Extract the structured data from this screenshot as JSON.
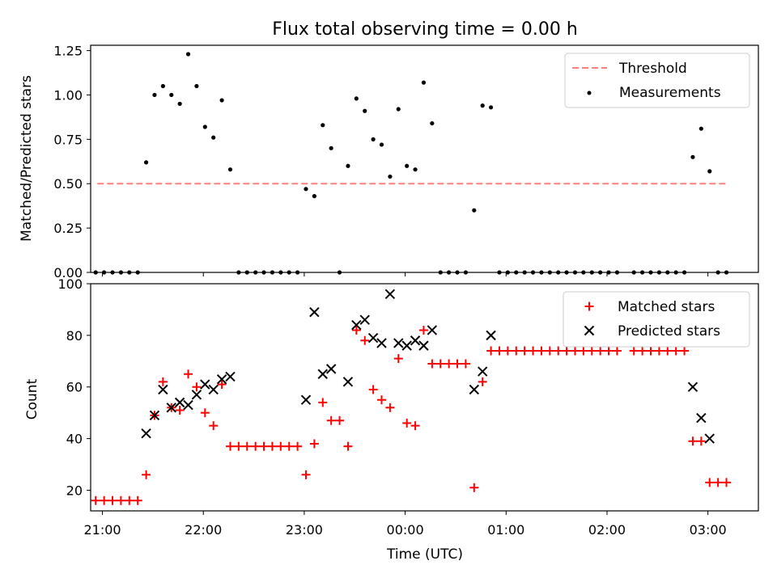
{
  "chart_data": [
    {
      "type": "scatter",
      "title": "Flux total observing time = 0.00 h",
      "ylabel": "Matched/Predicted stars",
      "xlabel": "",
      "xlim": [
        "20:53",
        "03:30"
      ],
      "ylim": [
        0,
        1.28
      ],
      "y_ticks": [
        0.0,
        0.25,
        0.5,
        0.75,
        1.0,
        1.25
      ],
      "y_tick_labels": [
        "0.00",
        "0.25",
        "0.50",
        "0.75",
        "1.00",
        "1.25"
      ],
      "grid": false,
      "legend": {
        "placement": "upper right",
        "entries": [
          "Threshold",
          "Measurements"
        ]
      },
      "series": [
        {
          "name": "Threshold",
          "style": "dashed-line",
          "color": "#ff7f7f",
          "points": [
            [
              "20:57",
              0.5
            ],
            [
              "03:12",
              0.5
            ]
          ]
        },
        {
          "name": "Measurements",
          "style": "dot",
          "color": "#000000",
          "points": [
            [
              "20:56",
              0.0
            ],
            [
              "21:01",
              0.0
            ],
            [
              "21:06",
              0.0
            ],
            [
              "21:11",
              0.0
            ],
            [
              "21:16",
              0.0
            ],
            [
              "21:21",
              0.0
            ],
            [
              "21:26",
              0.62
            ],
            [
              "21:31",
              1.0
            ],
            [
              "21:36",
              1.05
            ],
            [
              "21:41",
              1.0
            ],
            [
              "21:46",
              0.95
            ],
            [
              "21:51",
              1.23
            ],
            [
              "21:56",
              1.05
            ],
            [
              "22:01",
              0.82
            ],
            [
              "22:06",
              0.76
            ],
            [
              "22:11",
              0.97
            ],
            [
              "22:16",
              0.58
            ],
            [
              "22:21",
              0.0
            ],
            [
              "22:26",
              0.0
            ],
            [
              "22:31",
              0.0
            ],
            [
              "22:36",
              0.0
            ],
            [
              "22:41",
              0.0
            ],
            [
              "22:46",
              0.0
            ],
            [
              "22:51",
              0.0
            ],
            [
              "22:56",
              0.0
            ],
            [
              "23:01",
              0.47
            ],
            [
              "23:06",
              0.43
            ],
            [
              "23:11",
              0.83
            ],
            [
              "23:16",
              0.7
            ],
            [
              "23:21",
              0.0
            ],
            [
              "23:26",
              0.6
            ],
            [
              "23:31",
              0.98
            ],
            [
              "23:36",
              0.91
            ],
            [
              "23:41",
              0.75
            ],
            [
              "23:46",
              0.72
            ],
            [
              "23:51",
              0.54
            ],
            [
              "23:56",
              0.92
            ],
            [
              "00:01",
              0.6
            ],
            [
              "00:06",
              0.58
            ],
            [
              "00:11",
              1.07
            ],
            [
              "00:16",
              0.84
            ],
            [
              "00:21",
              0.0
            ],
            [
              "00:26",
              0.0
            ],
            [
              "00:31",
              0.0
            ],
            [
              "00:36",
              0.0
            ],
            [
              "00:41",
              0.35
            ],
            [
              "00:46",
              0.94
            ],
            [
              "00:51",
              0.93
            ],
            [
              "00:56",
              0.0
            ],
            [
              "01:01",
              0.0
            ],
            [
              "01:06",
              0.0
            ],
            [
              "01:11",
              0.0
            ],
            [
              "01:16",
              0.0
            ],
            [
              "01:21",
              0.0
            ],
            [
              "01:26",
              0.0
            ],
            [
              "01:31",
              0.0
            ],
            [
              "01:36",
              0.0
            ],
            [
              "01:41",
              0.0
            ],
            [
              "01:46",
              0.0
            ],
            [
              "01:51",
              0.0
            ],
            [
              "01:56",
              0.0
            ],
            [
              "02:01",
              0.0
            ],
            [
              "02:06",
              0.0
            ],
            [
              "02:16",
              0.0
            ],
            [
              "02:21",
              0.0
            ],
            [
              "02:26",
              0.0
            ],
            [
              "02:31",
              0.0
            ],
            [
              "02:36",
              0.0
            ],
            [
              "02:41",
              0.0
            ],
            [
              "02:46",
              0.0
            ],
            [
              "02:51",
              0.65
            ],
            [
              "02:56",
              0.81
            ],
            [
              "03:01",
              0.57
            ],
            [
              "03:06",
              0.0
            ],
            [
              "03:11",
              0.0
            ]
          ]
        }
      ]
    },
    {
      "type": "scatter",
      "title": "",
      "xlabel": "Time (UTC)",
      "ylabel": "Count",
      "xlim": [
        "20:53",
        "03:30"
      ],
      "ylim": [
        12,
        100
      ],
      "x_ticks": [
        "21:00",
        "22:00",
        "23:00",
        "00:00",
        "01:00",
        "02:00",
        "03:00"
      ],
      "y_ticks": [
        20,
        40,
        60,
        80,
        100
      ],
      "y_tick_labels": [
        "20",
        "40",
        "60",
        "80",
        "100"
      ],
      "grid": false,
      "legend": {
        "placement": "upper right",
        "entries": [
          "Matched stars",
          "Predicted stars"
        ]
      },
      "series": [
        {
          "name": "Matched stars",
          "marker": "+",
          "color": "#ff0000",
          "points": [
            [
              "20:56",
              16
            ],
            [
              "21:01",
              16
            ],
            [
              "21:06",
              16
            ],
            [
              "21:11",
              16
            ],
            [
              "21:16",
              16
            ],
            [
              "21:21",
              16
            ],
            [
              "21:26",
              26
            ],
            [
              "21:31",
              49
            ],
            [
              "21:36",
              62
            ],
            [
              "21:41",
              52
            ],
            [
              "21:46",
              51
            ],
            [
              "21:51",
              65
            ],
            [
              "21:56",
              60
            ],
            [
              "22:01",
              50
            ],
            [
              "22:06",
              45
            ],
            [
              "22:11",
              61
            ],
            [
              "22:16",
              37
            ],
            [
              "22:21",
              37
            ],
            [
              "22:26",
              37
            ],
            [
              "22:31",
              37
            ],
            [
              "22:36",
              37
            ],
            [
              "22:41",
              37
            ],
            [
              "22:46",
              37
            ],
            [
              "22:51",
              37
            ],
            [
              "22:56",
              37
            ],
            [
              "23:01",
              26
            ],
            [
              "23:06",
              38
            ],
            [
              "23:11",
              54
            ],
            [
              "23:16",
              47
            ],
            [
              "23:21",
              47
            ],
            [
              "23:26",
              37
            ],
            [
              "23:31",
              82
            ],
            [
              "23:36",
              78
            ],
            [
              "23:41",
              59
            ],
            [
              "23:46",
              55
            ],
            [
              "23:51",
              52
            ],
            [
              "23:56",
              71
            ],
            [
              "00:01",
              46
            ],
            [
              "00:06",
              45
            ],
            [
              "00:11",
              82
            ],
            [
              "00:16",
              69
            ],
            [
              "00:21",
              69
            ],
            [
              "00:26",
              69
            ],
            [
              "00:31",
              69
            ],
            [
              "00:36",
              69
            ],
            [
              "00:41",
              21
            ],
            [
              "00:46",
              62
            ],
            [
              "00:51",
              74
            ],
            [
              "00:56",
              74
            ],
            [
              "01:01",
              74
            ],
            [
              "01:06",
              74
            ],
            [
              "01:11",
              74
            ],
            [
              "01:16",
              74
            ],
            [
              "01:21",
              74
            ],
            [
              "01:26",
              74
            ],
            [
              "01:31",
              74
            ],
            [
              "01:36",
              74
            ],
            [
              "01:41",
              74
            ],
            [
              "01:46",
              74
            ],
            [
              "01:51",
              74
            ],
            [
              "01:56",
              74
            ],
            [
              "02:01",
              74
            ],
            [
              "02:06",
              74
            ],
            [
              "02:16",
              74
            ],
            [
              "02:21",
              74
            ],
            [
              "02:26",
              74
            ],
            [
              "02:31",
              74
            ],
            [
              "02:36",
              74
            ],
            [
              "02:41",
              74
            ],
            [
              "02:46",
              74
            ],
            [
              "02:51",
              39
            ],
            [
              "02:56",
              39
            ],
            [
              "03:01",
              23
            ],
            [
              "03:06",
              23
            ],
            [
              "03:11",
              23
            ]
          ]
        },
        {
          "name": "Predicted stars",
          "marker": "x",
          "color": "#000000",
          "points": [
            [
              "21:26",
              42
            ],
            [
              "21:31",
              49
            ],
            [
              "21:36",
              59
            ],
            [
              "21:41",
              52
            ],
            [
              "21:46",
              54
            ],
            [
              "21:51",
              53
            ],
            [
              "21:56",
              57
            ],
            [
              "22:01",
              61
            ],
            [
              "22:06",
              59
            ],
            [
              "22:11",
              63
            ],
            [
              "22:16",
              64
            ],
            [
              "23:01",
              55
            ],
            [
              "23:06",
              89
            ],
            [
              "23:11",
              65
            ],
            [
              "23:16",
              67
            ],
            [
              "23:26",
              62
            ],
            [
              "23:31",
              84
            ],
            [
              "23:36",
              86
            ],
            [
              "23:41",
              79
            ],
            [
              "23:46",
              77
            ],
            [
              "23:51",
              96
            ],
            [
              "23:56",
              77
            ],
            [
              "00:01",
              76
            ],
            [
              "00:06",
              78
            ],
            [
              "00:11",
              76
            ],
            [
              "00:16",
              82
            ],
            [
              "00:41",
              59
            ],
            [
              "00:46",
              66
            ],
            [
              "00:51",
              80
            ],
            [
              "02:51",
              60
            ],
            [
              "02:56",
              48
            ],
            [
              "03:01",
              40
            ]
          ]
        }
      ]
    }
  ]
}
